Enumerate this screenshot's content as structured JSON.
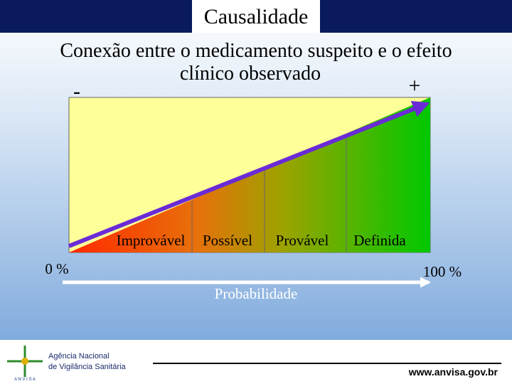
{
  "header": {
    "title": "Causalidade"
  },
  "subtitle": [
    "Conexão entre o medicamento suspeito e o efeito",
    "clínico observado"
  ],
  "scale": {
    "minus": "-",
    "plus": "+",
    "levels": [
      "Improvável",
      "Possível",
      "Provável",
      "Definida"
    ],
    "start": "0 %",
    "end": "100 %",
    "label": "Probabilidade"
  },
  "footer": {
    "agency": [
      "Agência Nacional",
      "de Vigilância Sanitária"
    ],
    "logo": "A N V I S A",
    "url": "www.anvisa.gov.br"
  }
}
